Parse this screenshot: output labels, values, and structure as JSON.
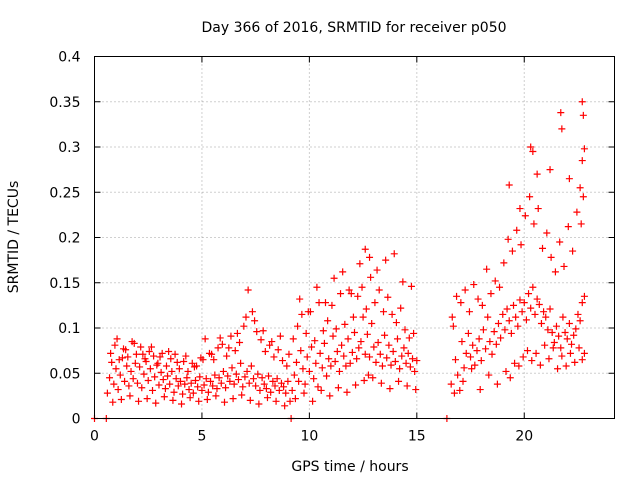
{
  "chart_data": {
    "type": "scatter",
    "title": "Day 366 of 2016, SRMTID for receiver p050",
    "xlabel": "GPS time / hours",
    "ylabel": "SRMTID / TECUs",
    "xlim": [
      0,
      24.2
    ],
    "ylim": [
      0,
      0.4
    ],
    "x_ticks": [
      0,
      5,
      10,
      15,
      20
    ],
    "x_tick_labels": [
      "0",
      "5",
      "10",
      "15",
      "20"
    ],
    "y_ticks": [
      0,
      0.05,
      0.1,
      0.15,
      0.2,
      0.25,
      0.3,
      0.35,
      0.4
    ],
    "y_tick_labels": [
      "0",
      "0.05",
      "0.1",
      "0.15",
      "0.2",
      "0.25",
      "0.3",
      "0.35",
      "0.4"
    ],
    "grid": true,
    "marker": "plus",
    "color": "#ff0000",
    "series": [
      {
        "name": "SRMTID",
        "x": [
          0.0,
          0.55,
          9.15,
          16.4,
          0.6,
          0.7,
          0.8,
          0.9,
          1.0,
          1.1,
          1.2,
          1.3,
          1.4,
          1.5,
          1.6,
          1.7,
          1.8,
          1.9,
          2.0,
          2.1,
          2.2,
          2.3,
          2.4,
          2.5,
          2.6,
          2.7,
          2.8,
          2.9,
          3.0,
          3.1,
          3.2,
          3.3,
          3.4,
          3.5,
          3.6,
          3.7,
          3.8,
          3.9,
          4.0,
          4.1,
          4.2,
          4.3,
          4.4,
          4.5,
          4.6,
          4.7,
          4.8,
          4.9,
          5.0,
          5.1,
          5.2,
          5.3,
          5.4,
          5.5,
          5.6,
          5.7,
          5.8,
          5.9,
          6.0,
          6.1,
          6.2,
          6.3,
          6.4,
          6.5,
          6.6,
          6.7,
          6.8,
          6.9,
          7.0,
          7.1,
          7.2,
          7.3,
          7.4,
          7.5,
          7.6,
          7.7,
          7.8,
          7.9,
          8.0,
          8.1,
          8.2,
          8.3,
          8.4,
          8.5,
          8.6,
          8.7,
          8.8,
          8.9,
          9.0,
          9.1,
          0.75,
          0.95,
          1.15,
          1.35,
          1.55,
          1.75,
          1.95,
          2.15,
          2.35,
          2.55,
          2.75,
          2.95,
          3.15,
          3.35,
          3.55,
          3.75,
          3.95,
          4.15,
          4.35,
          4.55,
          4.75,
          4.95,
          5.15,
          5.35,
          5.55,
          5.75,
          5.95,
          6.15,
          6.35,
          6.55,
          6.75,
          6.95,
          7.15,
          7.35,
          7.55,
          7.75,
          7.95,
          8.15,
          8.35,
          8.55,
          8.75,
          8.95,
          0.85,
          1.25,
          1.65,
          2.05,
          2.45,
          2.85,
          3.25,
          3.65,
          4.05,
          4.45,
          4.85,
          5.25,
          5.65,
          6.05,
          6.45,
          6.85,
          7.25,
          7.65,
          8.05,
          8.45,
          8.85,
          1.05,
          1.45,
          1.85,
          2.25,
          2.65,
          3.05,
          3.45,
          3.85,
          4.25,
          4.65,
          5.05,
          5.45,
          5.85,
          6.25,
          6.65,
          7.05,
          7.45,
          7.85,
          8.25,
          8.65,
          9.05,
          9.2,
          9.3,
          9.4,
          9.5,
          9.6,
          9.7,
          9.8,
          9.9,
          10.0,
          10.1,
          10.2,
          10.3,
          10.4,
          10.5,
          10.6,
          10.7,
          10.8,
          10.9,
          11.0,
          11.1,
          11.2,
          11.3,
          11.4,
          11.5,
          11.6,
          11.7,
          11.8,
          11.9,
          12.0,
          12.1,
          12.2,
          12.3,
          12.4,
          12.5,
          12.6,
          12.7,
          12.8,
          12.9,
          13.0,
          13.1,
          13.2,
          13.3,
          13.4,
          13.5,
          13.6,
          13.7,
          13.8,
          13.9,
          14.0,
          14.1,
          14.2,
          14.3,
          14.4,
          14.5,
          14.6,
          14.7,
          14.8,
          14.9,
          15.0,
          9.25,
          9.45,
          9.65,
          9.85,
          10.05,
          10.25,
          10.45,
          10.65,
          10.85,
          11.05,
          11.25,
          11.45,
          11.65,
          11.85,
          12.05,
          12.25,
          12.45,
          12.65,
          12.85,
          13.05,
          13.25,
          13.45,
          13.65,
          13.85,
          14.05,
          14.25,
          14.45,
          14.65,
          14.85,
          9.35,
          9.75,
          10.15,
          10.55,
          10.95,
          11.35,
          11.75,
          12.15,
          12.55,
          12.75,
          12.95,
          13.35,
          13.75,
          14.15,
          14.55,
          14.95,
          9.55,
          9.95,
          10.35,
          10.75,
          11.15,
          11.55,
          11.95,
          12.35,
          12.6,
          12.8,
          13.15,
          13.55,
          13.95,
          14.35,
          14.75,
          16.6,
          16.7,
          16.8,
          16.9,
          17.0,
          17.1,
          17.2,
          17.3,
          17.4,
          17.5,
          17.6,
          17.7,
          17.8,
          17.9,
          18.0,
          18.1,
          18.2,
          18.3,
          18.4,
          18.5,
          18.6,
          18.7,
          18.8,
          18.9,
          19.0,
          19.1,
          19.2,
          19.3,
          19.4,
          19.5,
          19.6,
          19.7,
          19.8,
          19.9,
          20.0,
          20.1,
          20.2,
          20.3,
          20.4,
          20.5,
          20.6,
          20.7,
          20.8,
          20.9,
          21.0,
          21.1,
          21.2,
          21.3,
          21.4,
          21.5,
          21.6,
          21.7,
          21.8,
          21.9,
          22.0,
          22.1,
          22.2,
          22.3,
          22.4,
          22.5,
          22.6,
          22.7,
          22.8,
          16.65,
          16.85,
          17.05,
          17.25,
          17.45,
          17.65,
          17.85,
          18.05,
          18.25,
          18.45,
          18.65,
          18.85,
          19.05,
          19.25,
          19.45,
          19.65,
          19.85,
          20.05,
          20.25,
          20.45,
          20.65,
          20.85,
          21.05,
          21.25,
          21.45,
          21.65,
          21.85,
          22.05,
          22.25,
          22.45,
          22.65,
          22.75,
          16.75,
          17.15,
          17.55,
          17.95,
          18.35,
          18.75,
          19.15,
          19.35,
          19.55,
          19.75,
          19.95,
          20.15,
          20.35,
          20.55,
          20.75,
          20.95,
          21.15,
          21.35,
          21.55,
          21.75,
          21.95,
          22.15,
          22.35,
          22.55,
          22.7,
          22.8,
          19.3,
          19.8,
          20.3,
          20.4,
          20.6,
          21.2,
          21.7,
          21.75,
          22.1,
          22.7,
          22.75,
          22.8,
          22.7,
          22.6
        ],
        "y": [
          0.0,
          0.0,
          0.0,
          0.0,
          0.028,
          0.045,
          0.062,
          0.038,
          0.055,
          0.032,
          0.048,
          0.067,
          0.041,
          0.058,
          0.036,
          0.052,
          0.044,
          0.061,
          0.039,
          0.057,
          0.034,
          0.049,
          0.063,
          0.042,
          0.055,
          0.031,
          0.046,
          0.059,
          0.037,
          0.051,
          0.043,
          0.033,
          0.047,
          0.038,
          0.052,
          0.029,
          0.044,
          0.036,
          0.041,
          0.027,
          0.038,
          0.045,
          0.032,
          0.039,
          0.028,
          0.042,
          0.035,
          0.046,
          0.031,
          0.037,
          0.044,
          0.029,
          0.041,
          0.036,
          0.048,
          0.033,
          0.045,
          0.039,
          0.052,
          0.034,
          0.047,
          0.041,
          0.056,
          0.038,
          0.049,
          0.043,
          0.061,
          0.035,
          0.046,
          0.052,
          0.039,
          0.058,
          0.044,
          0.036,
          0.049,
          0.031,
          0.045,
          0.038,
          0.033,
          0.047,
          0.029,
          0.041,
          0.036,
          0.044,
          0.031,
          0.039,
          0.035,
          0.028,
          0.041,
          0.019,
          0.072,
          0.081,
          0.065,
          0.077,
          0.068,
          0.085,
          0.071,
          0.079,
          0.066,
          0.074,
          0.069,
          0.061,
          0.072,
          0.058,
          0.066,
          0.071,
          0.055,
          0.063,
          0.052,
          0.061,
          0.058,
          0.067,
          0.088,
          0.072,
          0.065,
          0.078,
          0.082,
          0.069,
          0.091,
          0.075,
          0.084,
          0.102,
          0.142,
          0.118,
          0.096,
          0.087,
          0.074,
          0.081,
          0.068,
          0.076,
          0.064,
          0.058,
          0.018,
          0.021,
          0.025,
          0.019,
          0.022,
          0.017,
          0.024,
          0.02,
          0.016,
          0.023,
          0.019,
          0.021,
          0.025,
          0.018,
          0.022,
          0.026,
          0.02,
          0.016,
          0.023,
          0.019,
          0.014,
          0.088,
          0.076,
          0.083,
          0.071,
          0.079,
          0.068,
          0.074,
          0.062,
          0.069,
          0.057,
          0.065,
          0.071,
          0.089,
          0.078,
          0.094,
          0.112,
          0.108,
          0.097,
          0.085,
          0.091,
          0.071,
          0.031,
          0.048,
          0.062,
          0.041,
          0.075,
          0.055,
          0.038,
          0.068,
          0.052,
          0.079,
          0.044,
          0.061,
          0.035,
          0.072,
          0.056,
          0.083,
          0.047,
          0.066,
          0.058,
          0.091,
          0.063,
          0.074,
          0.052,
          0.081,
          0.069,
          0.058,
          0.088,
          0.061,
          0.073,
          0.095,
          0.066,
          0.078,
          0.085,
          0.112,
          0.071,
          0.093,
          0.068,
          0.105,
          0.079,
          0.062,
          0.084,
          0.071,
          0.058,
          0.092,
          0.067,
          0.081,
          0.059,
          0.074,
          0.063,
          0.088,
          0.055,
          0.069,
          0.078,
          0.061,
          0.072,
          0.057,
          0.066,
          0.052,
          0.064,
          0.088,
          0.102,
          0.115,
          0.094,
          0.118,
          0.086,
          0.128,
          0.097,
          0.108,
          0.125,
          0.099,
          0.138,
          0.104,
          0.142,
          0.112,
          0.135,
          0.145,
          0.121,
          0.156,
          0.128,
          0.142,
          0.118,
          0.134,
          0.115,
          0.106,
          0.122,
          0.098,
          0.089,
          0.094,
          0.022,
          0.028,
          0.019,
          0.031,
          0.025,
          0.034,
          0.029,
          0.037,
          0.042,
          0.048,
          0.045,
          0.039,
          0.033,
          0.041,
          0.036,
          0.032,
          0.132,
          0.118,
          0.145,
          0.128,
          0.155,
          0.162,
          0.138,
          0.171,
          0.187,
          0.178,
          0.164,
          0.175,
          0.182,
          0.151,
          0.146,
          0.038,
          0.102,
          0.065,
          0.048,
          0.031,
          0.085,
          0.056,
          0.072,
          0.094,
          0.068,
          0.081,
          0.059,
          0.075,
          0.088,
          0.064,
          0.098,
          0.077,
          0.112,
          0.085,
          0.071,
          0.096,
          0.082,
          0.105,
          0.089,
          0.115,
          0.098,
          0.121,
          0.108,
          0.094,
          0.125,
          0.112,
          0.102,
          0.131,
          0.118,
          0.128,
          0.109,
          0.138,
          0.122,
          0.145,
          0.115,
          0.132,
          0.126,
          0.105,
          0.118,
          0.112,
          0.098,
          0.121,
          0.095,
          0.084,
          0.102,
          0.091,
          0.078,
          0.112,
          0.095,
          0.088,
          0.105,
          0.082,
          0.092,
          0.099,
          0.115,
          0.108,
          0.128,
          0.135,
          0.112,
          0.135,
          0.128,
          0.142,
          0.118,
          0.148,
          0.132,
          0.125,
          0.165,
          0.138,
          0.152,
          0.145,
          0.172,
          0.198,
          0.185,
          0.208,
          0.192,
          0.224,
          0.245,
          0.215,
          0.232,
          0.188,
          0.205,
          0.178,
          0.162,
          0.195,
          0.168,
          0.212,
          0.185,
          0.228,
          0.215,
          0.245,
          0.028,
          0.041,
          0.055,
          0.032,
          0.048,
          0.038,
          0.052,
          0.045,
          0.061,
          0.058,
          0.068,
          0.075,
          0.064,
          0.072,
          0.059,
          0.081,
          0.066,
          0.078,
          0.055,
          0.069,
          0.058,
          0.072,
          0.062,
          0.078,
          0.065,
          0.072,
          0.258,
          0.232,
          0.3,
          0.295,
          0.27,
          0.275,
          0.338,
          0.32,
          0.265,
          0.35,
          0.335,
          0.298,
          0.285,
          0.255
        ]
      }
    ]
  }
}
